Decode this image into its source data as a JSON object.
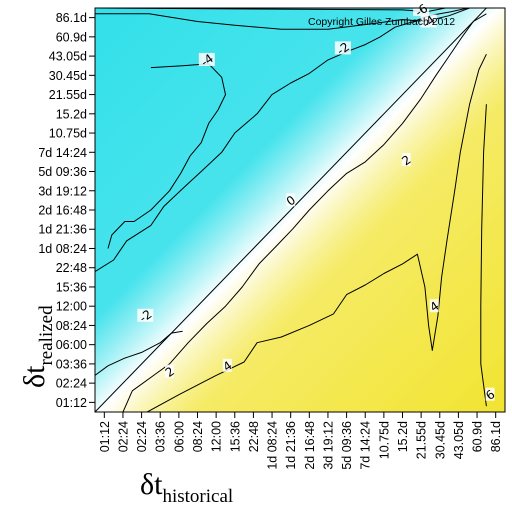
{
  "chart_data": {
    "type": "heatmap",
    "title": "",
    "copyright": "Copyright Gilles Zumbach 2012",
    "xlabel": {
      "symbol": "δt",
      "subscript": "historical"
    },
    "ylabel": {
      "symbol": "δt",
      "subscript": "realized"
    },
    "x_ticks": [
      "01:12",
      "02:24",
      "02:24",
      "03:36",
      "06:00",
      "08:24",
      "12:00",
      "15:36",
      "22:48",
      "1d 08:24",
      "1d 21:36",
      "2d 16:48",
      "3d 19:12",
      "5d 09:36",
      "7d 14:24",
      "10.75d",
      "15.2d",
      "21.55d",
      "30.45d",
      "43.05d",
      "60.9d",
      "86.1d"
    ],
    "y_ticks": [
      "86.1d",
      "60.9d",
      "43.05d",
      "30.45d",
      "21.55d",
      "15.2d",
      "10.75d",
      "7d 14:24",
      "5d 09:36",
      "3d 19:12",
      "2d 16:48",
      "1d 21:36",
      "1d 08:24",
      "22:48",
      "15:36",
      "12:00",
      "08:24",
      "06:00",
      "03:36",
      "02:24",
      "01:12"
    ],
    "colormap": {
      "negative": "#33e0ea",
      "zero": "#ffffff",
      "positive": "#f2e431"
    },
    "contour_levels": [
      -6,
      -4,
      -2,
      0,
      2,
      4,
      6
    ],
    "contour_labels": [
      {
        "level": -6,
        "text": "-6",
        "at": [
          17,
          20.4
        ]
      },
      {
        "level": -4,
        "text": "-4",
        "at": [
          17.4,
          19.8
        ]
      },
      {
        "level": -4,
        "text": "-4",
        "at": [
          5.5,
          17.8
        ]
      },
      {
        "level": -2,
        "text": "-2",
        "at": [
          12.8,
          18.4
        ]
      },
      {
        "level": -2,
        "text": "-2",
        "at": [
          2.2,
          4.5
        ]
      },
      {
        "level": 0,
        "text": "0",
        "at": [
          10,
          10.5
        ]
      },
      {
        "level": 2,
        "text": "2",
        "at": [
          16.2,
          12.6
        ]
      },
      {
        "level": 2,
        "text": "2",
        "at": [
          3.5,
          1.6
        ]
      },
      {
        "level": 4,
        "text": "4",
        "at": [
          17.7,
          5.0
        ]
      },
      {
        "level": 4,
        "text": "4",
        "at": [
          6.6,
          1.9
        ]
      },
      {
        "level": 6,
        "text": "6",
        "at": [
          20.7,
          0.4
        ]
      }
    ],
    "grid": false,
    "legend": "none"
  }
}
